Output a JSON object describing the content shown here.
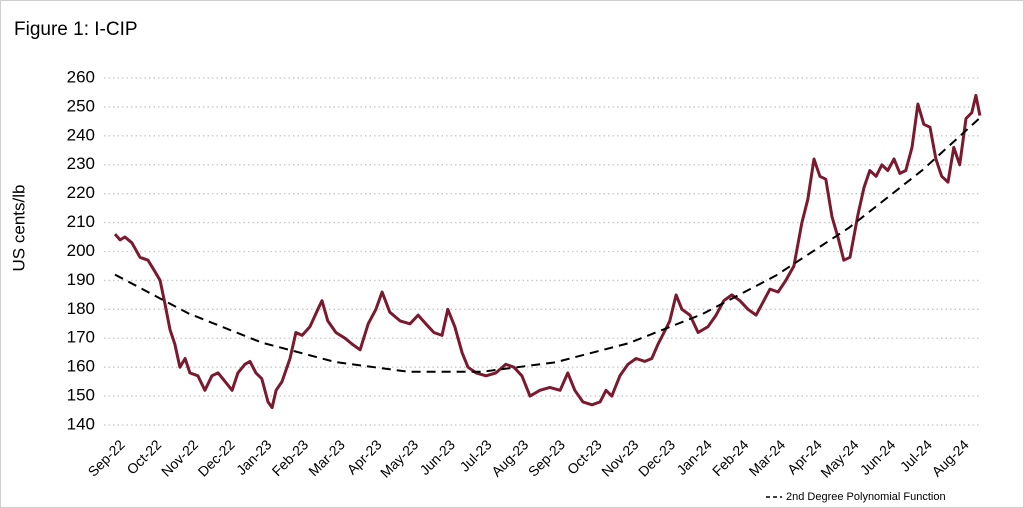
{
  "chart_data": {
    "type": "line",
    "title": "Figure 1: I-CIP",
    "y_label": "US cents/lb",
    "ylim": [
      140,
      260
    ],
    "yticks": [
      140,
      150,
      160,
      170,
      180,
      190,
      200,
      210,
      220,
      230,
      240,
      250,
      260
    ],
    "grid": true,
    "xlim": [
      0,
      23.6
    ],
    "xticks": [
      {
        "value": 0,
        "label": "Sep-22"
      },
      {
        "value": 1,
        "label": "Oct-22"
      },
      {
        "value": 2,
        "label": "Nov-22"
      },
      {
        "value": 3,
        "label": "Dec-22"
      },
      {
        "value": 4,
        "label": "Jan-23"
      },
      {
        "value": 5,
        "label": "Feb-23"
      },
      {
        "value": 6,
        "label": "Mar-23"
      },
      {
        "value": 7,
        "label": "Apr-23"
      },
      {
        "value": 8,
        "label": "May-23"
      },
      {
        "value": 9,
        "label": "Jun-23"
      },
      {
        "value": 10,
        "label": "Jul-23"
      },
      {
        "value": 11,
        "label": "Aug-23"
      },
      {
        "value": 12,
        "label": "Sep-23"
      },
      {
        "value": 13,
        "label": "Oct-23"
      },
      {
        "value": 14,
        "label": "Nov-23"
      },
      {
        "value": 15,
        "label": "Dec-23"
      },
      {
        "value": 16,
        "label": "Jan-24"
      },
      {
        "value": 17,
        "label": "Feb-24"
      },
      {
        "value": 18,
        "label": "Mar-24"
      },
      {
        "value": 19,
        "label": "Apr-24"
      },
      {
        "value": 20,
        "label": "May-24"
      },
      {
        "value": 21,
        "label": "Jun-24"
      },
      {
        "value": 22,
        "label": "Jul-24"
      },
      {
        "value": 23,
        "label": "Aug-24"
      }
    ],
    "series": [
      {
        "color": "#7b1a2e",
        "dash": false,
        "x": [
          0,
          0.14,
          0.27,
          0.46,
          0.68,
          0.9,
          1.09,
          1.23,
          1.36,
          1.5,
          1.63,
          1.77,
          1.91,
          2.04,
          2.26,
          2.45,
          2.64,
          2.81,
          3.0,
          3.19,
          3.35,
          3.54,
          3.68,
          3.84,
          4.0,
          4.17,
          4.28,
          4.39,
          4.55,
          4.77,
          4.93,
          5.1,
          5.31,
          5.53,
          5.64,
          5.8,
          6.02,
          6.27,
          6.46,
          6.68,
          6.9,
          7.11,
          7.28,
          7.49,
          7.77,
          8.04,
          8.26,
          8.47,
          8.69,
          8.91,
          9.07,
          9.26,
          9.46,
          9.62,
          9.84,
          10.11,
          10.38,
          10.65,
          10.87,
          11.09,
          11.31,
          11.58,
          11.85,
          12.13,
          12.34,
          12.53,
          12.75,
          13.0,
          13.22,
          13.38,
          13.54,
          13.76,
          13.98,
          14.2,
          14.44,
          14.63,
          14.8,
          14.96,
          15.12,
          15.29,
          15.45,
          15.67,
          15.89,
          16.16,
          16.38,
          16.59,
          16.81,
          17.03,
          17.25,
          17.47,
          17.68,
          17.85,
          18.07,
          18.28,
          18.5,
          18.72,
          18.88,
          19.05,
          19.21,
          19.37,
          19.54,
          19.7,
          19.86,
          20.03,
          20.25,
          20.41,
          20.57,
          20.74,
          20.9,
          21.06,
          21.23,
          21.39,
          21.55,
          21.72,
          21.88,
          22.04,
          22.21,
          22.37,
          22.53,
          22.7,
          22.86,
          23.02,
          23.19,
          23.35,
          23.46,
          23.57
        ],
        "values": [
          206,
          204,
          205,
          203,
          198,
          197,
          193,
          190,
          182,
          173,
          168,
          160,
          163,
          158,
          157,
          152,
          157,
          158,
          155,
          152,
          158,
          161,
          162,
          158,
          156,
          148,
          146,
          152,
          155,
          163,
          172,
          171,
          174,
          180,
          183,
          176,
          172,
          170,
          168,
          166,
          175,
          180,
          186,
          179,
          176,
          175,
          178,
          175,
          172,
          171,
          180,
          174,
          165,
          160,
          158,
          157,
          158,
          161,
          160,
          157,
          150,
          152,
          153,
          152,
          158,
          152,
          148,
          147,
          148,
          152,
          150,
          157,
          161,
          163,
          162,
          163,
          168,
          172,
          176,
          185,
          180,
          178,
          172,
          174,
          178,
          183,
          185,
          183,
          180,
          178,
          183,
          187,
          186,
          190,
          195,
          210,
          218,
          232,
          226,
          225,
          212,
          205,
          197,
          198,
          213,
          222,
          228,
          226,
          230,
          228,
          232,
          227,
          228,
          236,
          251,
          244,
          243,
          232,
          226,
          224,
          236,
          230,
          246,
          248,
          254,
          247
        ]
      },
      {
        "name": "2nd Degree Polynomial Function",
        "color": "#000000",
        "dash": true,
        "x": [
          0,
          2,
          4,
          6,
          8,
          10,
          12,
          14,
          16,
          18,
          20,
          22,
          23.57
        ],
        "values": [
          192,
          178.6,
          168.5,
          161.8,
          158.4,
          158.4,
          161.7,
          168.3,
          178.3,
          191.6,
          208.2,
          228.1,
          246.2
        ]
      }
    ]
  }
}
